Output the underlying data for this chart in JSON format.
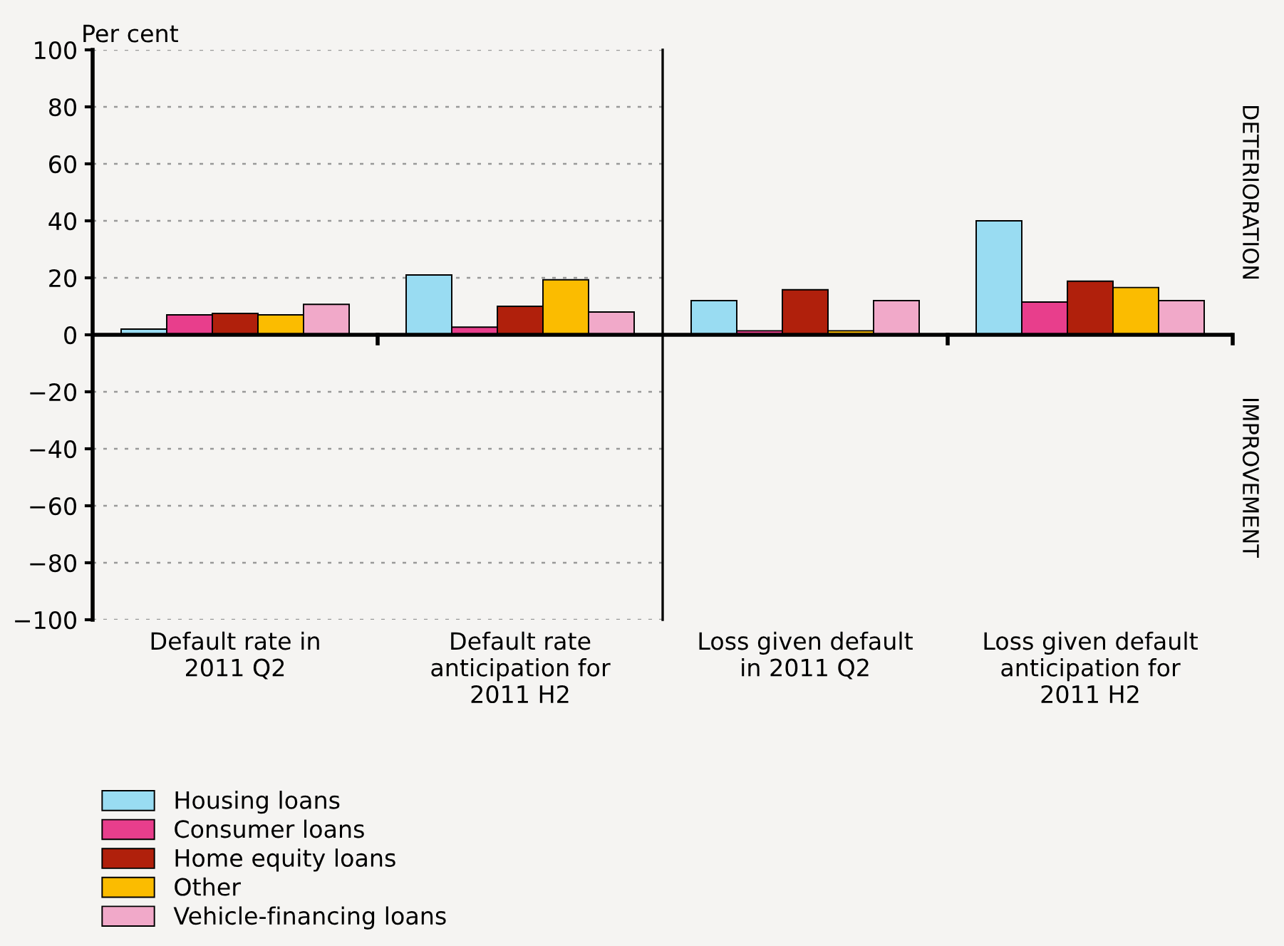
{
  "chart_data": [
    {
      "type": "bar",
      "ylabel": "Per cent",
      "categories": [
        "Default rate in\n2011 Q2",
        "Default rate\nanticipation for\n2011 H2"
      ],
      "series": [
        {
          "name": "Housing loans",
          "color": "#99dcf2",
          "values": [
            2,
            21
          ]
        },
        {
          "name": "Consumer loans",
          "color": "#e83e8c",
          "values": [
            7,
            2.7
          ]
        },
        {
          "name": "Home equity loans",
          "color": "#b0200c",
          "values": [
            7.5,
            10
          ]
        },
        {
          "name": "Other",
          "color": "#fbbc00",
          "values": [
            7,
            19.3
          ]
        },
        {
          "name": "Vehicle-financing loans",
          "color": "#f1a9c9",
          "values": [
            10.7,
            8
          ]
        }
      ],
      "ylim": [
        -100,
        100
      ],
      "yticks": [
        -100,
        -80,
        -60,
        -40,
        -20,
        0,
        20,
        40,
        60,
        80,
        100
      ],
      "grid": "y",
      "legend": "bottom left"
    },
    {
      "type": "bar",
      "categories": [
        "Loss given default\nin 2011 Q2",
        "Loss given default\nanticipation for\n2011 H2"
      ],
      "series": [
        {
          "color": "#99dcf2",
          "values": [
            12,
            40
          ]
        },
        {
          "color": "#e83e8c",
          "values": [
            1.4,
            11.5
          ]
        },
        {
          "color": "#b0200c",
          "values": [
            15.8,
            18.8
          ]
        },
        {
          "color": "#fbbc00",
          "values": [
            1.4,
            16.6
          ]
        },
        {
          "color": "#f1a9c9",
          "values": [
            12,
            12
          ]
        }
      ],
      "ylim": [
        -100,
        100
      ],
      "tick_labels": "x",
      "grid": "y",
      "annotations": [
        "DETERIORATION",
        "IMPROVEMENT"
      ]
    }
  ]
}
